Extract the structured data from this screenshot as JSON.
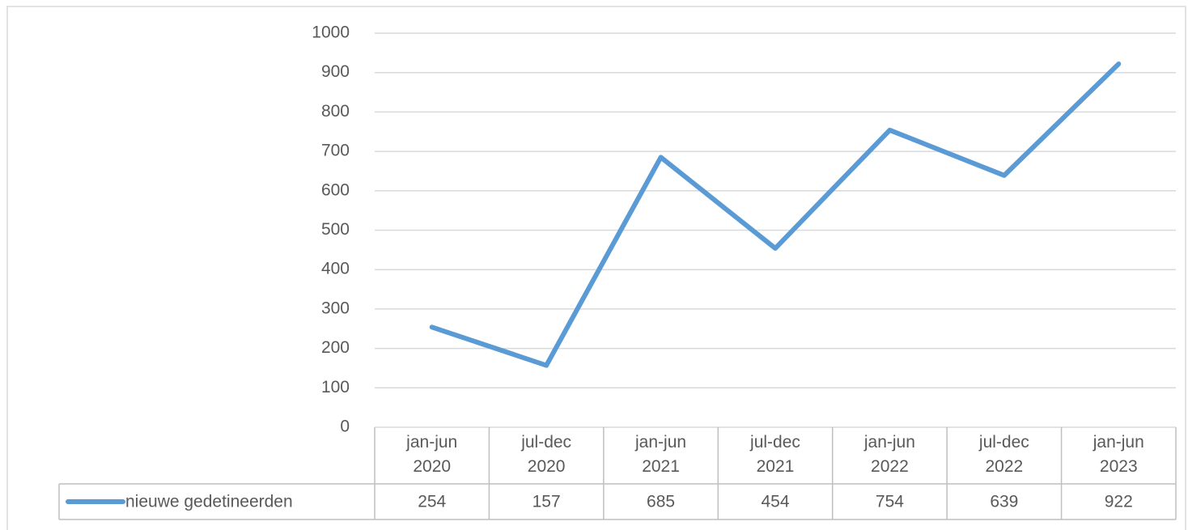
{
  "chart_data": {
    "type": "line",
    "categories": [
      "jan-jun 2020",
      "jul-dec 2020",
      "jan-jun 2021",
      "jul-dec 2021",
      "jan-jun 2022",
      "jul-dec 2022",
      "jan-jun 2023"
    ],
    "series": [
      {
        "name": "nieuwe gedetineerden",
        "color": "#5b9bd5",
        "values": [
          254,
          157,
          685,
          454,
          754,
          639,
          922
        ]
      }
    ],
    "ylim": [
      0,
      1000
    ],
    "yticks": [
      0,
      100,
      200,
      300,
      400,
      500,
      600,
      700,
      800,
      900,
      1000
    ],
    "grid": true,
    "data_table": true
  }
}
